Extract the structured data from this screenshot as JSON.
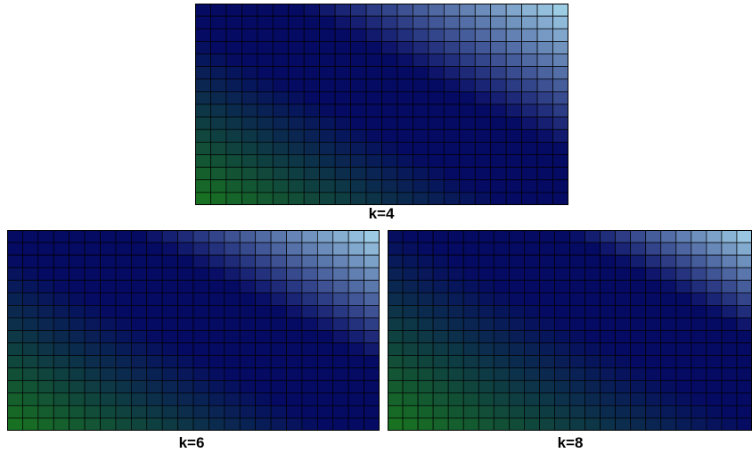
{
  "colors": {
    "green": "#1a7a1c",
    "navy": "#050a63",
    "sky": "#aadcf0",
    "grid": "#000000"
  },
  "panels": [
    {
      "label": "k=4",
      "cols": 24,
      "rows": 16,
      "band_center": 1.05,
      "band_width": 0.2
    },
    {
      "label": "k=6",
      "cols": 24,
      "rows": 16,
      "band_center": 1.1,
      "band_width": 0.22
    },
    {
      "label": "k=8",
      "cols": 24,
      "rows": 16,
      "band_center": 1.25,
      "band_width": 0.22
    }
  ]
}
